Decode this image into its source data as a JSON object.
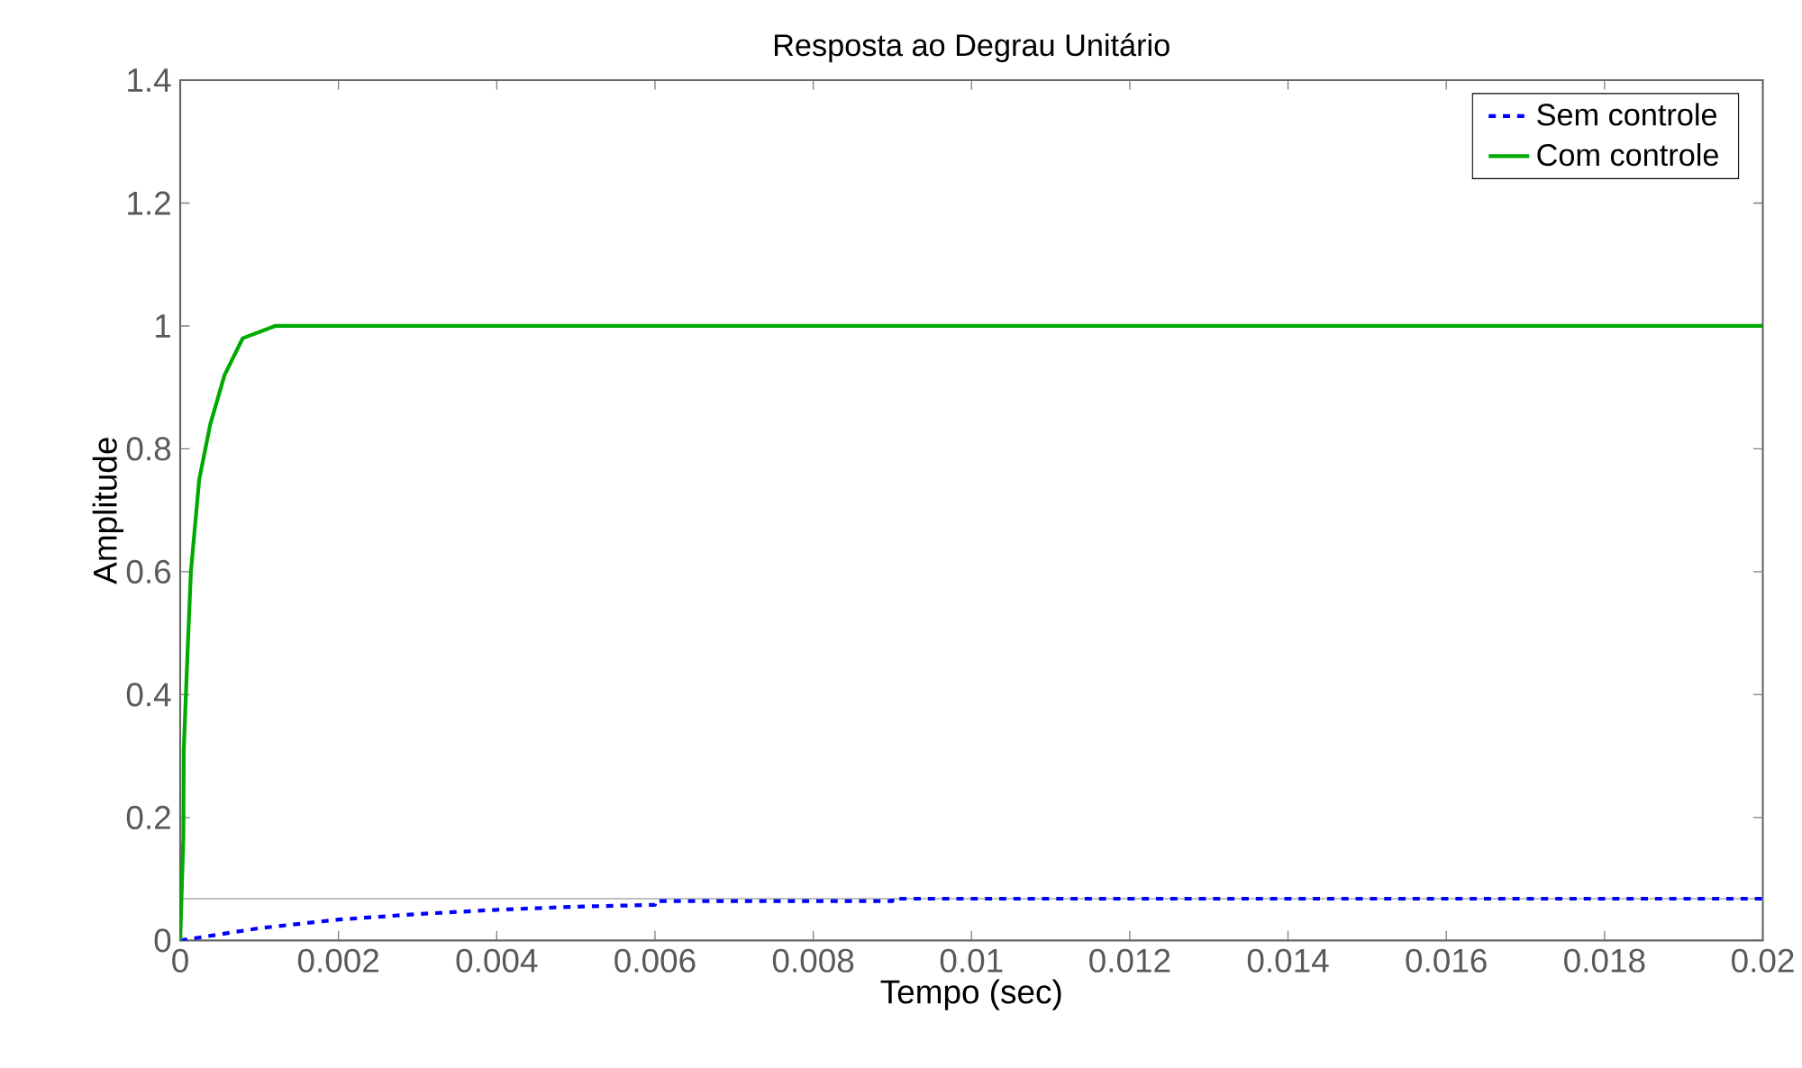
{
  "chart_data": {
    "type": "line",
    "title": "Resposta ao Degrau Unitário",
    "xlabel": "Tempo (sec)",
    "ylabel": "Amplitude",
    "xlim": [
      0,
      0.02
    ],
    "ylim": [
      0,
      1.4
    ],
    "xticks": [
      0,
      0.002,
      0.004,
      0.006,
      0.008,
      0.01,
      0.012,
      0.014,
      0.016,
      0.018,
      0.02
    ],
    "yticks": [
      0,
      0.2,
      0.4,
      0.6,
      0.8,
      1,
      1.2,
      1.4
    ],
    "legend": "top right",
    "grid": false,
    "marker": "none",
    "ref_lines": [
      {
        "axis": "y",
        "value": 0.068,
        "color": "#aaaaaa"
      }
    ],
    "series": [
      {
        "name": "Sem controle",
        "color": "#0000ff",
        "line_style": "dashed",
        "x": [
          0,
          0.001,
          0.002,
          0.003,
          0.004,
          0.005,
          0.006,
          0.006,
          0.009,
          0.009,
          0.02
        ],
        "values": [
          0,
          0.02,
          0.034,
          0.043,
          0.05,
          0.055,
          0.058,
          0.064,
          0.064,
          0.068,
          0.068
        ]
      },
      {
        "name": "Com controle",
        "color": "#00aa00",
        "line_style": "solid",
        "x": [
          0,
          4e-05,
          4.5e-05,
          9e-05,
          0.000135,
          0.00024,
          0.00038,
          0.00056,
          0.00079,
          0.0012,
          0.02
        ],
        "values": [
          0,
          0.17,
          0.31,
          0.46,
          0.6,
          0.75,
          0.84,
          0.92,
          0.98,
          1.0,
          1.0
        ]
      }
    ]
  }
}
